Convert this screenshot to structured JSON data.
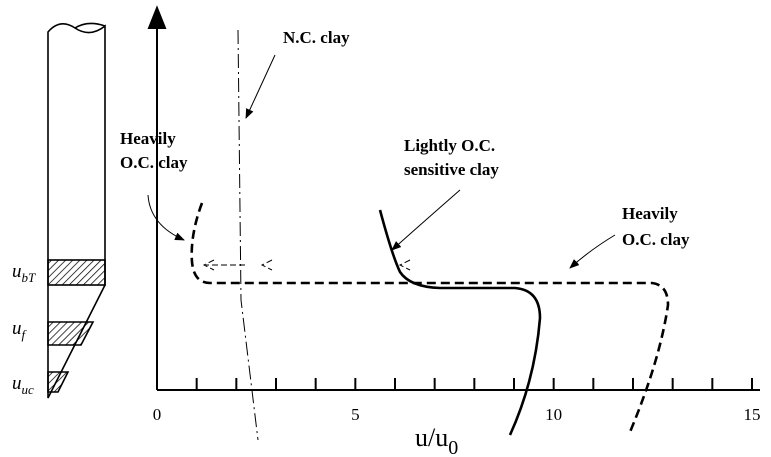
{
  "annotations": {
    "nc_clay": "N.C. clay",
    "heavily_oc_left": [
      "Heavily",
      "O.C. clay"
    ],
    "lightly_oc": [
      "Lightly O.C.",
      "sensitive clay"
    ],
    "heavily_oc_right": [
      "Heavily",
      "O.C. clay"
    ]
  },
  "pile_labels": [
    {
      "main": "u",
      "sub": "bT"
    },
    {
      "main": "u",
      "sub": "f"
    },
    {
      "main": "u",
      "sub": "uc"
    }
  ],
  "x_axis": {
    "label": {
      "main": "u/u",
      "sub": "0"
    },
    "lim": [
      0,
      15
    ],
    "ticks": [
      0,
      5,
      10,
      15
    ]
  }
}
